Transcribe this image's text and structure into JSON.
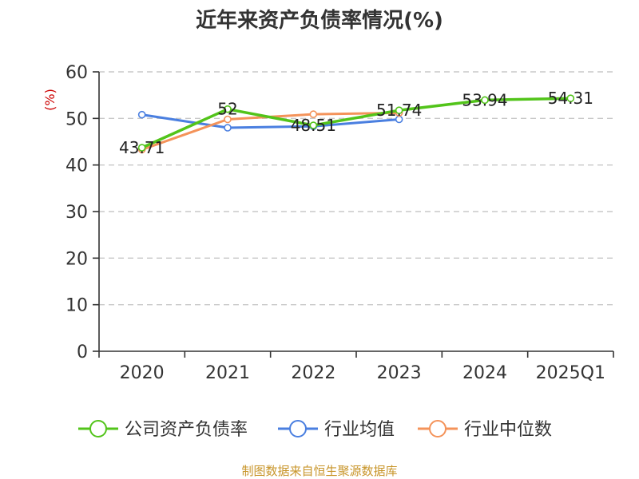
{
  "chart_data": {
    "type": "line",
    "title": "近年来资产负债率情况(%)",
    "ylabel": "(%)",
    "xlabel": "",
    "categories": [
      "2020",
      "2021",
      "2022",
      "2023",
      "2024",
      "2025Q1"
    ],
    "ylim": [
      0,
      60
    ],
    "yticks": [
      0,
      10,
      20,
      30,
      40,
      50,
      60
    ],
    "grid": true,
    "legend_position": "bottom",
    "series": [
      {
        "name": "公司资产负债率",
        "color": "#52c41a",
        "values": [
          43.71,
          52,
          48.51,
          51.74,
          53.94,
          54.31
        ],
        "labels": [
          "43.71",
          "52",
          "48.51",
          "51.74",
          "53.94",
          "54.31"
        ]
      },
      {
        "name": "行业均值",
        "color": "#4a7fe0",
        "values": [
          50.8,
          48.0,
          48.3,
          49.8,
          null,
          null
        ]
      },
      {
        "name": "行业中位数",
        "color": "#f4935a",
        "values": [
          43.3,
          49.8,
          50.9,
          51.2,
          null,
          null
        ]
      }
    ]
  },
  "source_text": "制图数据来自恒生聚源数据库",
  "colors": {
    "title": "#333333",
    "ylabel": "#cc0000",
    "source": "#c8952a"
  }
}
